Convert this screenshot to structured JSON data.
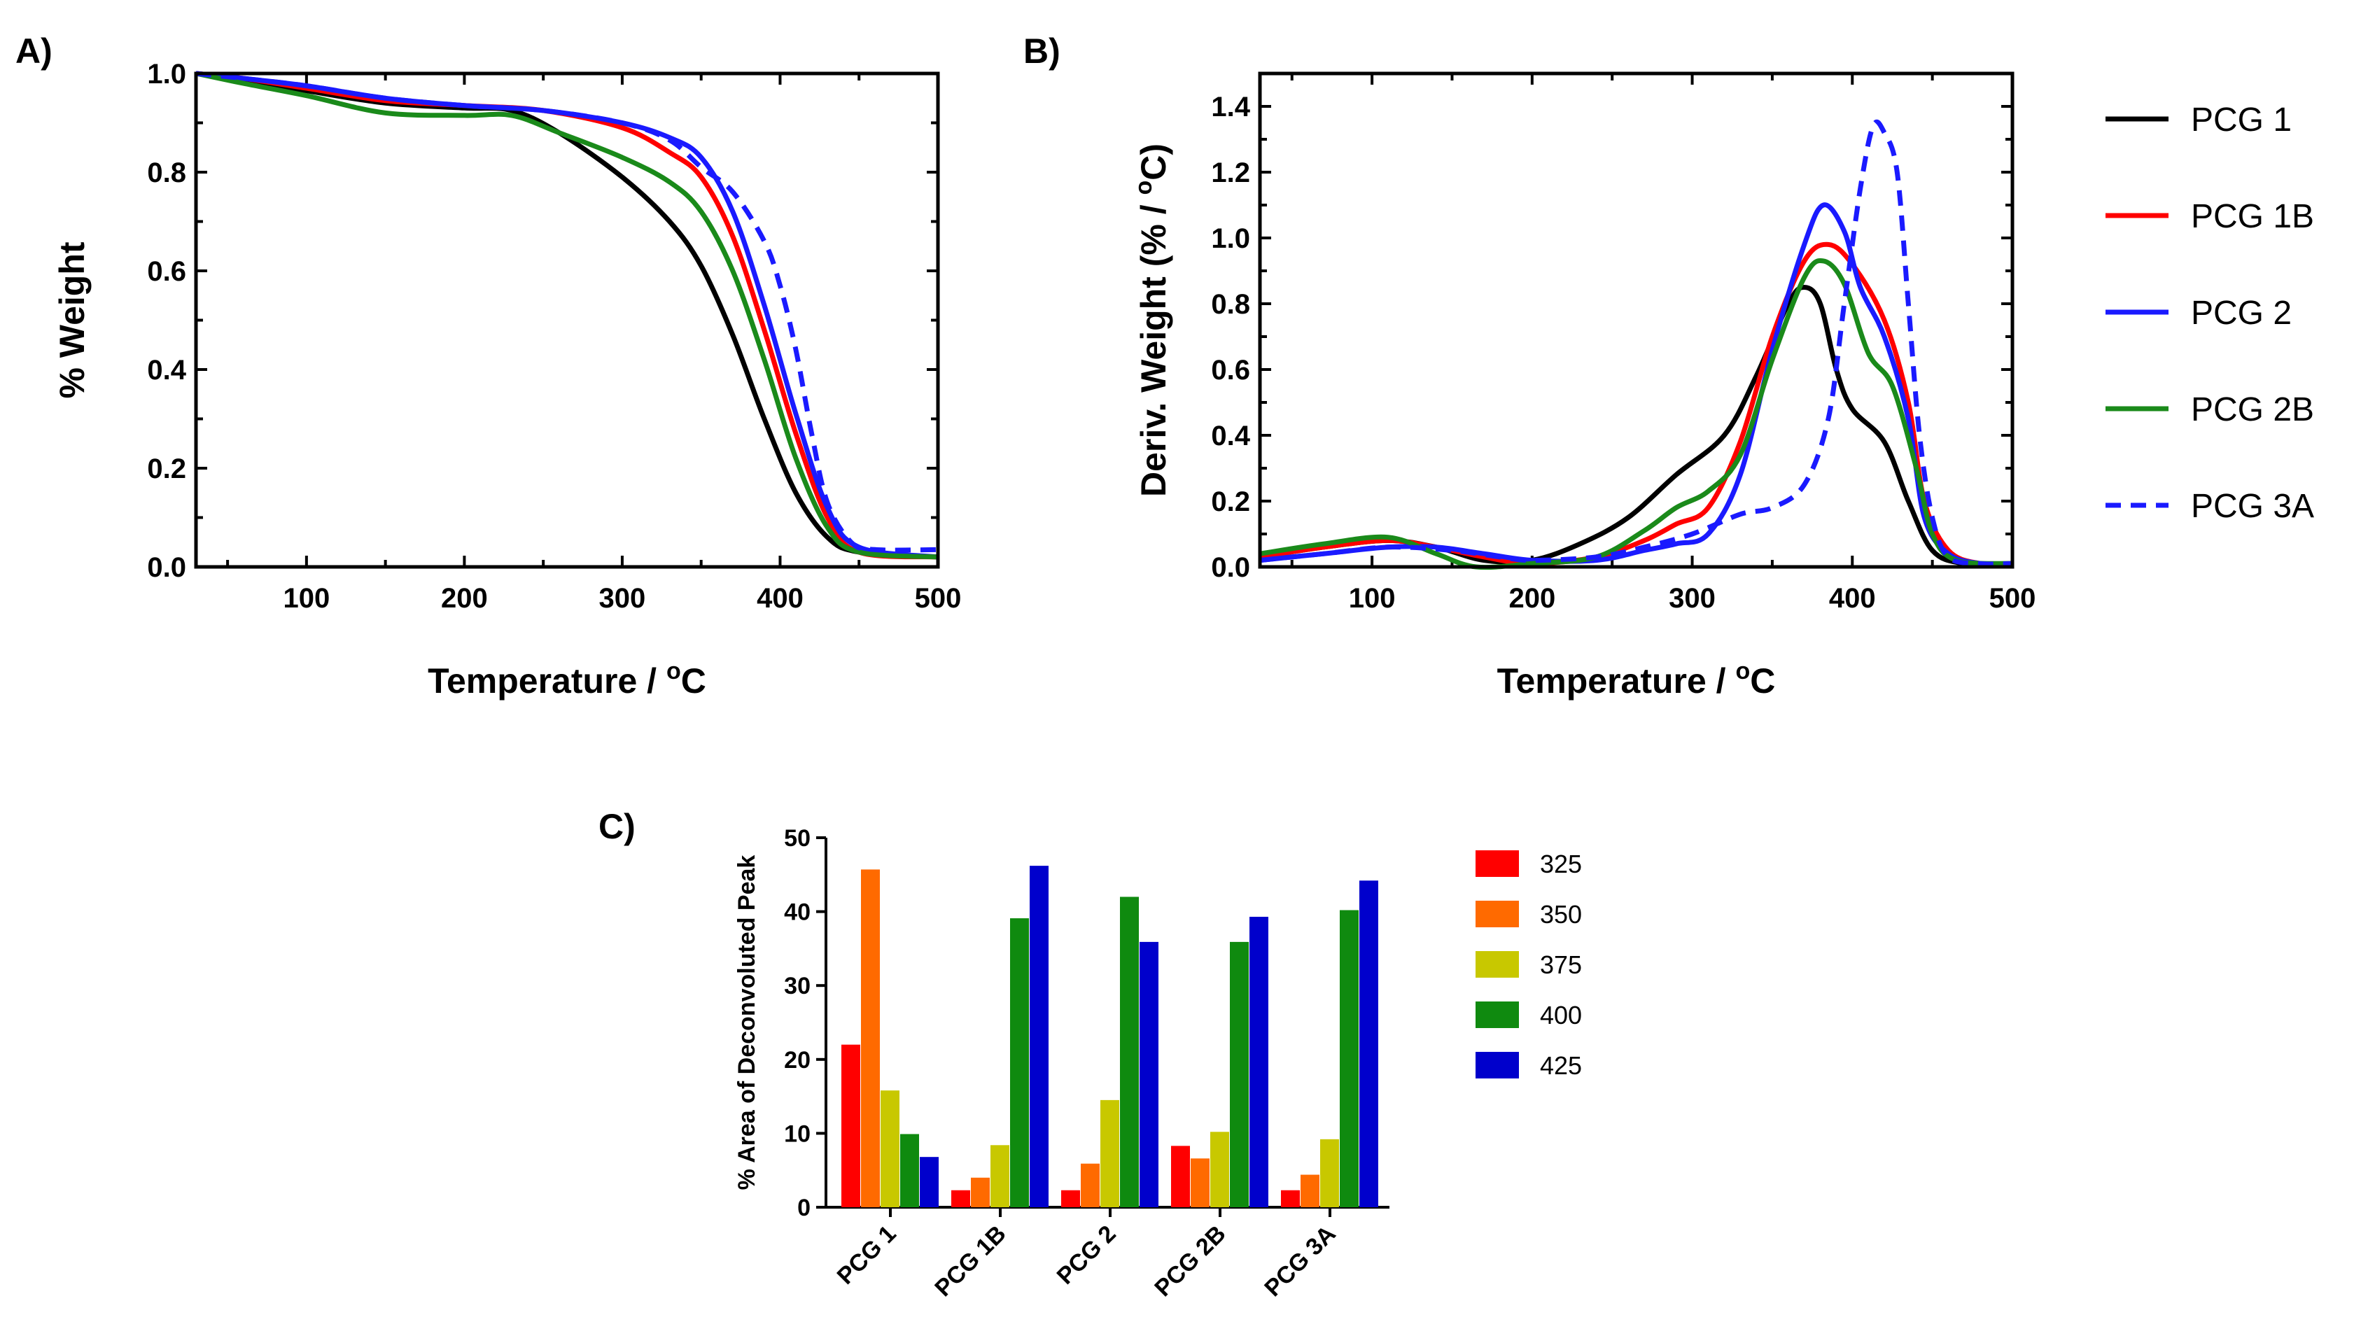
{
  "panels": {
    "a_label": "A)",
    "b_label": "B)",
    "c_label": "C)"
  },
  "series_styles": [
    {
      "name": "PCG 1",
      "color": "#000000",
      "dashed": false
    },
    {
      "name": "PCG 1B",
      "color": "#ff0000",
      "dashed": false
    },
    {
      "name": "PCG 2",
      "color": "#1a1aff",
      "dashed": false
    },
    {
      "name": "PCG 2B",
      "color": "#1a8a1a",
      "dashed": false
    },
    {
      "name": "PCG 3A",
      "color": "#1a1aff",
      "dashed": true
    }
  ],
  "chart_data": [
    {
      "id": "A",
      "type": "line",
      "title": "",
      "xlabel": "Temperature / ",
      "xlabel_sup": "o",
      "xlabel_unit": "C",
      "ylabel": "% Weight",
      "xlim": [
        30,
        500
      ],
      "ylim": [
        0,
        1.0
      ],
      "xticks": [
        100,
        200,
        300,
        400,
        500
      ],
      "yticks": [
        0.0,
        0.2,
        0.4,
        0.6,
        0.8,
        1.0
      ],
      "ytick_labels": [
        "0.0",
        "0.2",
        "0.4",
        "0.6",
        "0.8",
        "1.0"
      ],
      "xtick_labels": [
        "100",
        "200",
        "300",
        "400",
        "500"
      ],
      "series": [
        {
          "name": "PCG 1",
          "points": [
            [
              30,
              1.0
            ],
            [
              60,
              0.985
            ],
            [
              100,
              0.965
            ],
            [
              150,
              0.94
            ],
            [
              200,
              0.93
            ],
            [
              230,
              0.925
            ],
            [
              260,
              0.88
            ],
            [
              300,
              0.79
            ],
            [
              330,
              0.7
            ],
            [
              350,
              0.61
            ],
            [
              370,
              0.47
            ],
            [
              390,
              0.3
            ],
            [
              410,
              0.15
            ],
            [
              430,
              0.06
            ],
            [
              450,
              0.03
            ],
            [
              500,
              0.02
            ]
          ]
        },
        {
          "name": "PCG 1B",
          "points": [
            [
              30,
              1.0
            ],
            [
              60,
              0.99
            ],
            [
              100,
              0.97
            ],
            [
              150,
              0.945
            ],
            [
              200,
              0.935
            ],
            [
              250,
              0.925
            ],
            [
              300,
              0.89
            ],
            [
              330,
              0.84
            ],
            [
              350,
              0.79
            ],
            [
              370,
              0.67
            ],
            [
              390,
              0.48
            ],
            [
              410,
              0.27
            ],
            [
              430,
              0.1
            ],
            [
              450,
              0.03
            ],
            [
              500,
              0.02
            ]
          ]
        },
        {
          "name": "PCG 2",
          "points": [
            [
              30,
              1.0
            ],
            [
              60,
              0.99
            ],
            [
              100,
              0.975
            ],
            [
              150,
              0.95
            ],
            [
              200,
              0.935
            ],
            [
              250,
              0.925
            ],
            [
              300,
              0.9
            ],
            [
              330,
              0.87
            ],
            [
              350,
              0.83
            ],
            [
              370,
              0.72
            ],
            [
              390,
              0.53
            ],
            [
              410,
              0.31
            ],
            [
              430,
              0.12
            ],
            [
              450,
              0.04
            ],
            [
              500,
              0.02
            ]
          ]
        },
        {
          "name": "PCG 2B",
          "points": [
            [
              30,
              1.0
            ],
            [
              60,
              0.98
            ],
            [
              100,
              0.955
            ],
            [
              150,
              0.92
            ],
            [
              200,
              0.915
            ],
            [
              230,
              0.915
            ],
            [
              260,
              0.88
            ],
            [
              300,
              0.83
            ],
            [
              330,
              0.78
            ],
            [
              350,
              0.72
            ],
            [
              370,
              0.6
            ],
            [
              390,
              0.42
            ],
            [
              410,
              0.22
            ],
            [
              430,
              0.08
            ],
            [
              450,
              0.03
            ],
            [
              500,
              0.02
            ]
          ]
        },
        {
          "name": "PCG 3A",
          "points": [
            [
              30,
              1.0
            ],
            [
              60,
              0.99
            ],
            [
              100,
              0.975
            ],
            [
              150,
              0.95
            ],
            [
              200,
              0.935
            ],
            [
              250,
              0.925
            ],
            [
              300,
              0.9
            ],
            [
              330,
              0.865
            ],
            [
              350,
              0.81
            ],
            [
              370,
              0.76
            ],
            [
              390,
              0.66
            ],
            [
              400,
              0.57
            ],
            [
              410,
              0.44
            ],
            [
              420,
              0.27
            ],
            [
              430,
              0.13
            ],
            [
              445,
              0.05
            ],
            [
              460,
              0.035
            ],
            [
              500,
              0.035
            ]
          ]
        }
      ]
    },
    {
      "id": "B",
      "type": "line",
      "title": "",
      "xlabel": "Temperature / ",
      "xlabel_sup": "o",
      "xlabel_unit": "C",
      "ylabel": "Deriv.  Weight (% / ",
      "ylabel_sup": "o",
      "ylabel_unit": "C)",
      "xlim": [
        30,
        500
      ],
      "ylim": [
        0,
        1.5
      ],
      "xticks": [
        100,
        200,
        300,
        400,
        500
      ],
      "yticks": [
        0.0,
        0.2,
        0.4,
        0.6,
        0.8,
        1.0,
        1.2,
        1.4
      ],
      "ytick_labels": [
        "0.0",
        "0.2",
        "0.4",
        "0.6",
        "0.8",
        "1.0",
        "1.2",
        "1.4"
      ],
      "xtick_labels": [
        "100",
        "200",
        "300",
        "400",
        "500"
      ],
      "series": [
        {
          "name": "PCG 1",
          "points": [
            [
              30,
              0.03
            ],
            [
              70,
              0.06
            ],
            [
              110,
              0.08
            ],
            [
              140,
              0.06
            ],
            [
              170,
              0.02
            ],
            [
              200,
              0.02
            ],
            [
              230,
              0.07
            ],
            [
              260,
              0.15
            ],
            [
              290,
              0.28
            ],
            [
              320,
              0.4
            ],
            [
              340,
              0.58
            ],
            [
              360,
              0.8
            ],
            [
              370,
              0.85
            ],
            [
              380,
              0.8
            ],
            [
              390,
              0.6
            ],
            [
              400,
              0.48
            ],
            [
              420,
              0.38
            ],
            [
              435,
              0.2
            ],
            [
              450,
              0.05
            ],
            [
              470,
              0.01
            ],
            [
              500,
              0.01
            ]
          ]
        },
        {
          "name": "PCG 1B",
          "points": [
            [
              30,
              0.03
            ],
            [
              70,
              0.06
            ],
            [
              110,
              0.08
            ],
            [
              140,
              0.06
            ],
            [
              170,
              0.03
            ],
            [
              200,
              0.01
            ],
            [
              240,
              0.03
            ],
            [
              270,
              0.08
            ],
            [
              290,
              0.13
            ],
            [
              310,
              0.18
            ],
            [
              330,
              0.38
            ],
            [
              350,
              0.7
            ],
            [
              370,
              0.93
            ],
            [
              385,
              0.98
            ],
            [
              400,
              0.92
            ],
            [
              420,
              0.75
            ],
            [
              435,
              0.5
            ],
            [
              445,
              0.2
            ],
            [
              460,
              0.05
            ],
            [
              480,
              0.01
            ],
            [
              500,
              0.01
            ]
          ]
        },
        {
          "name": "PCG 2",
          "points": [
            [
              30,
              0.02
            ],
            [
              70,
              0.04
            ],
            [
              110,
              0.06
            ],
            [
              140,
              0.06
            ],
            [
              170,
              0.04
            ],
            [
              200,
              0.02
            ],
            [
              240,
              0.02
            ],
            [
              270,
              0.05
            ],
            [
              290,
              0.07
            ],
            [
              310,
              0.1
            ],
            [
              330,
              0.28
            ],
            [
              350,
              0.66
            ],
            [
              370,
              0.98
            ],
            [
              382,
              1.1
            ],
            [
              395,
              1.02
            ],
            [
              405,
              0.85
            ],
            [
              420,
              0.7
            ],
            [
              435,
              0.45
            ],
            [
              445,
              0.15
            ],
            [
              460,
              0.04
            ],
            [
              480,
              0.01
            ],
            [
              500,
              0.01
            ]
          ]
        },
        {
          "name": "PCG 2B",
          "points": [
            [
              30,
              0.04
            ],
            [
              70,
              0.07
            ],
            [
              110,
              0.09
            ],
            [
              140,
              0.04
            ],
            [
              165,
              0.0
            ],
            [
              200,
              0.01
            ],
            [
              240,
              0.03
            ],
            [
              270,
              0.11
            ],
            [
              290,
              0.18
            ],
            [
              310,
              0.23
            ],
            [
              330,
              0.34
            ],
            [
              350,
              0.63
            ],
            [
              370,
              0.88
            ],
            [
              382,
              0.93
            ],
            [
              395,
              0.86
            ],
            [
              410,
              0.65
            ],
            [
              425,
              0.55
            ],
            [
              440,
              0.3
            ],
            [
              450,
              0.1
            ],
            [
              465,
              0.02
            ],
            [
              500,
              0.01
            ]
          ]
        },
        {
          "name": "PCG 3A",
          "points": [
            [
              30,
              0.02
            ],
            [
              70,
              0.04
            ],
            [
              110,
              0.06
            ],
            [
              150,
              0.05
            ],
            [
              180,
              0.03
            ],
            [
              200,
              0.02
            ],
            [
              240,
              0.03
            ],
            [
              270,
              0.06
            ],
            [
              300,
              0.1
            ],
            [
              330,
              0.16
            ],
            [
              350,
              0.18
            ],
            [
              370,
              0.25
            ],
            [
              385,
              0.45
            ],
            [
              395,
              0.8
            ],
            [
              405,
              1.15
            ],
            [
              413,
              1.34
            ],
            [
              420,
              1.32
            ],
            [
              428,
              1.2
            ],
            [
              435,
              0.8
            ],
            [
              442,
              0.4
            ],
            [
              450,
              0.15
            ],
            [
              460,
              0.03
            ],
            [
              480,
              0.01
            ],
            [
              500,
              0.01
            ]
          ]
        }
      ],
      "legend": {
        "placement": "right",
        "entries": [
          "PCG 1",
          "PCG 1B",
          "PCG 2",
          "PCG 2B",
          "PCG 3A"
        ]
      }
    },
    {
      "id": "C",
      "type": "bar",
      "title": "",
      "xlabel": "",
      "ylabel": "% Area of Deconvoluted Peak",
      "ylim": [
        0,
        50
      ],
      "yticks": [
        0,
        10,
        20,
        30,
        40,
        50
      ],
      "ytick_labels": [
        "0",
        "10",
        "20",
        "30",
        "40",
        "50"
      ],
      "categories": [
        "PCG 1",
        "PCG 1B",
        "PCG 2",
        "PCG 2B",
        "PCG 3A"
      ],
      "series": [
        {
          "name": "325",
          "color": "#ff0000",
          "values": [
            22.0,
            2.3,
            2.3,
            8.3,
            2.3
          ]
        },
        {
          "name": "350",
          "color": "#ff6a00",
          "values": [
            45.7,
            4.0,
            5.9,
            6.6,
            4.4
          ]
        },
        {
          "name": "375",
          "color": "#c8c800",
          "values": [
            15.8,
            8.4,
            14.5,
            10.2,
            9.2
          ]
        },
        {
          "name": "400",
          "color": "#0f8a0f",
          "values": [
            9.9,
            39.1,
            42.0,
            35.9,
            40.2
          ]
        },
        {
          "name": "425",
          "color": "#0000cc",
          "values": [
            6.8,
            46.2,
            35.9,
            39.3,
            44.2
          ]
        }
      ],
      "legend": {
        "placement": "right",
        "entries": [
          "325",
          "350",
          "375",
          "400",
          "425"
        ]
      }
    }
  ]
}
